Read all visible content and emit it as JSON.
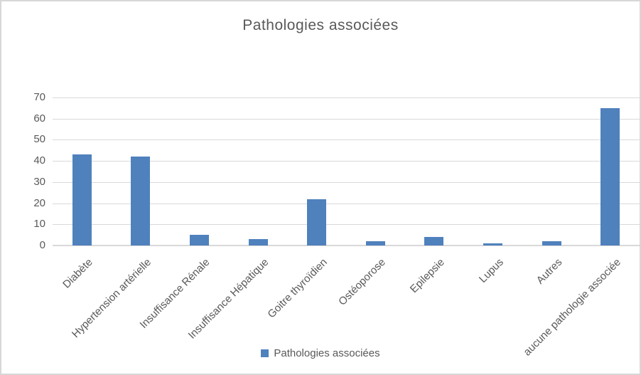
{
  "colors": {
    "bar_fill": "#4F81BD",
    "gridline": "#D9D9D9",
    "text": "#595959",
    "frame_border": "#D7D7D7",
    "background": "#FFFFFF"
  },
  "chart_data": {
    "type": "bar",
    "title": "Pathologies associées",
    "categories": [
      "Diabète",
      "Hypertension artérielle",
      "Insuffisance Rénale",
      "Insuffisance Hépatique",
      "Goitre thyroïdien",
      "Ostéoporose",
      "Epilepsie",
      "Lupus",
      "Autres",
      "aucune pathologie associée"
    ],
    "values": [
      43,
      42,
      5,
      3,
      22,
      2,
      4,
      1,
      2,
      65
    ],
    "series_name": "Pathologies associées",
    "legend": {
      "label": "Pathologies associées",
      "position": "bottom"
    },
    "xlabel": "",
    "ylabel": "",
    "ylim": [
      0,
      70
    ],
    "ytick_step": 10,
    "yticks": [
      0,
      10,
      20,
      30,
      40,
      50,
      60,
      70
    ],
    "grid": true,
    "x_label_rotation_deg": 45
  }
}
